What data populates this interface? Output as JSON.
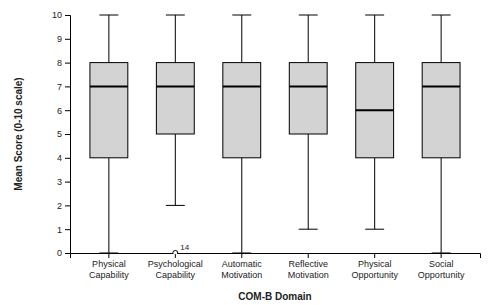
{
  "chart_data": {
    "type": "box",
    "x_label": "COM-B Domain",
    "y_label": "Mean Score (0-10 scale)",
    "categories": [
      "Physical Capability",
      "Psychological Capability",
      "Automatic Motivation",
      "Reflective Motivation",
      "Physical Opportunity",
      "Social Opportunity"
    ],
    "min": [
      0,
      2,
      0,
      1,
      1,
      0
    ],
    "q1": [
      4,
      5,
      4,
      5,
      4,
      4
    ],
    "median": [
      7,
      7,
      7,
      7,
      6,
      7
    ],
    "q3": [
      8,
      8,
      8,
      8,
      8,
      8
    ],
    "max": [
      10,
      10,
      10,
      10,
      10,
      10
    ],
    "outliers": [
      [],
      [
        {
          "value": 0,
          "label": "14"
        }
      ],
      [],
      [],
      [],
      []
    ],
    "color": "#d3d3d3",
    "ylim": [
      0,
      10
    ],
    "yticks": [
      0,
      1,
      2,
      3,
      4,
      5,
      6,
      7,
      8,
      9,
      10
    ],
    "grid": false
  }
}
